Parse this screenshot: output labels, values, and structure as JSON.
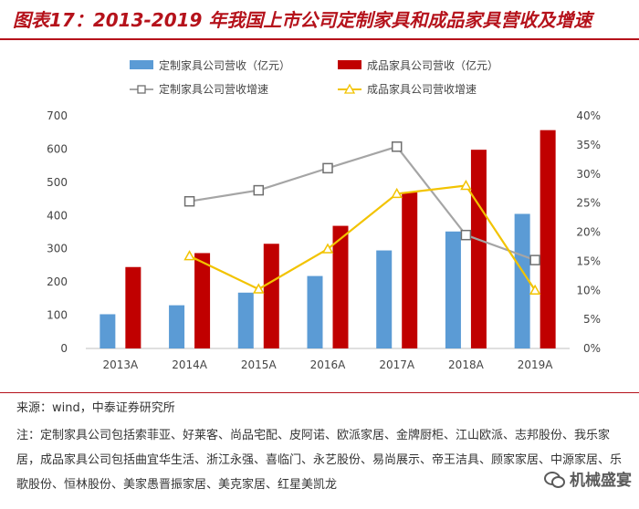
{
  "title": "图表17：2013-2019 年我国上市公司定制家具和成品家具营收及增速",
  "colors": {
    "accent": "#b5121b",
    "custom_bar": "#5b9bd5",
    "finished_bar": "#c00000",
    "custom_line": "#a5a5a5",
    "finished_line": "#f2c300"
  },
  "chart_data": {
    "type": "bar",
    "categories": [
      "2013A",
      "2014A",
      "2015A",
      "2016A",
      "2017A",
      "2018A",
      "2019A"
    ],
    "series": [
      {
        "name": "定制家具公司营收（亿元）",
        "kind": "bar",
        "axis": "left",
        "values": [
          103,
          130,
          168,
          218,
          295,
          352,
          405
        ]
      },
      {
        "name": "成品家具公司营收（亿元）",
        "kind": "bar",
        "axis": "left",
        "values": [
          245,
          287,
          315,
          369,
          470,
          598,
          657
        ]
      },
      {
        "name": "定制家具公司营收增速",
        "kind": "line",
        "marker": "square",
        "axis": "right",
        "values": [
          null,
          25.3,
          27.2,
          31.0,
          34.7,
          19.5,
          15.2
        ]
      },
      {
        "name": "成品家具公司营收增速",
        "kind": "line",
        "marker": "triangle",
        "axis": "right",
        "values": [
          null,
          15.9,
          10.2,
          17.1,
          26.6,
          28.0,
          10.0
        ]
      }
    ],
    "ylim_left": [
      0,
      700
    ],
    "yticks_left": [
      "0",
      "100",
      "200",
      "300",
      "400",
      "500",
      "600",
      "700"
    ],
    "ylim_right": [
      0,
      40
    ],
    "yticks_right": [
      "0%",
      "5%",
      "10%",
      "15%",
      "20%",
      "25%",
      "30%",
      "35%",
      "40%"
    ],
    "legend_position": "top",
    "grid": false
  },
  "source": "来源：wind，中泰证券研究所",
  "note": "注：定制家具公司包括索菲亚、好莱客、尚品宅配、皮阿诺、欧派家居、金牌厨柜、江山欧派、志邦股份、我乐家居，成品家具公司包括曲宜华生活、浙江永强、喜临门、永艺股份、易尚展示、帝王洁具、顾家家居、中源家居、乐歌股份、恒林股份、美家愚晋振家居、美克家居、红星美凯龙",
  "watermark": "机械盛宴"
}
